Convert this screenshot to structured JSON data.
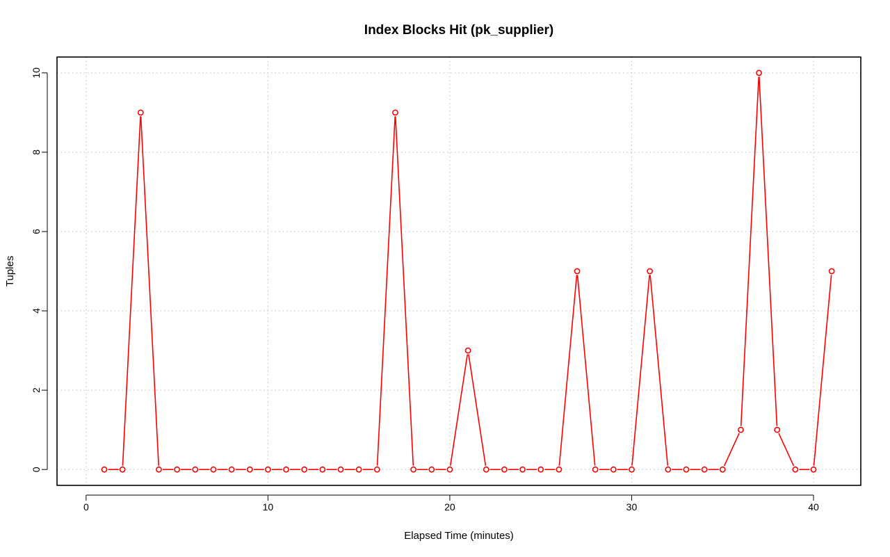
{
  "chart_data": {
    "type": "line",
    "title": "Index Blocks Hit (pk_supplier)",
    "xlabel": "Elapsed Time (minutes)",
    "ylabel": "Tuples",
    "xlim": [
      -1.6,
      42.6
    ],
    "ylim": [
      -0.4,
      10.4
    ],
    "xticks": [
      0,
      10,
      20,
      30,
      40
    ],
    "yticks": [
      0,
      2,
      4,
      6,
      8,
      10
    ],
    "grid": true,
    "series_color": "#ff0000",
    "x": [
      1,
      2,
      3,
      4,
      5,
      6,
      7,
      8,
      9,
      10,
      11,
      12,
      13,
      14,
      15,
      16,
      17,
      18,
      19,
      20,
      21,
      22,
      23,
      24,
      25,
      26,
      27,
      28,
      29,
      30,
      31,
      32,
      33,
      34,
      35,
      36,
      37,
      38,
      39,
      40,
      41
    ],
    "y": [
      0,
      0,
      9,
      0,
      0,
      0,
      0,
      0,
      0,
      0,
      0,
      0,
      0,
      0,
      0,
      0,
      9,
      0,
      0,
      0,
      3,
      0,
      0,
      0,
      0,
      0,
      5,
      0,
      0,
      0,
      5,
      0,
      0,
      0,
      0,
      1,
      10,
      1,
      0,
      0,
      5
    ]
  }
}
